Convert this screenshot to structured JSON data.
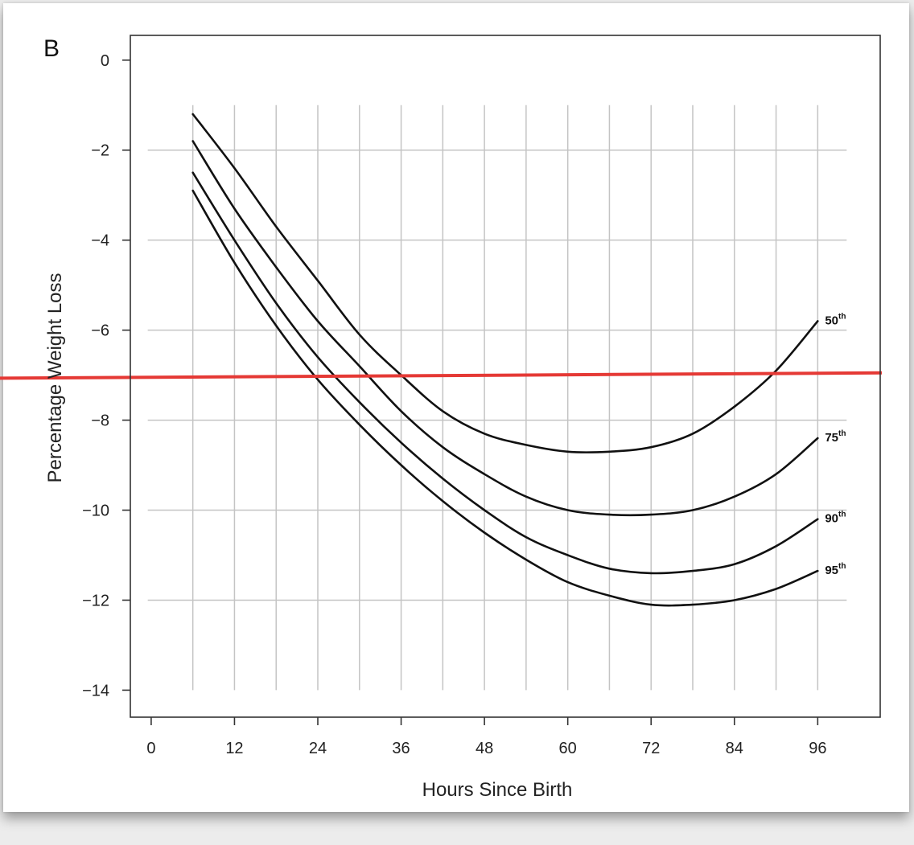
{
  "chart_data": {
    "type": "line",
    "panel_label": "B",
    "title": "",
    "xlabel": "Hours Since Birth",
    "ylabel": "Percentage Weight Loss",
    "xlim": [
      -3,
      105
    ],
    "ylim": [
      -14.6,
      0.55
    ],
    "xticks": [
      0,
      12,
      24,
      36,
      48,
      60,
      72,
      84,
      96
    ],
    "yticks": [
      0,
      -2,
      -4,
      -6,
      -8,
      -10,
      -12,
      -14
    ],
    "grid": {
      "horizontal": [
        -2,
        -4,
        -6,
        -8,
        -10,
        -12
      ],
      "vertical": [
        6,
        12,
        18,
        24,
        30,
        36,
        42,
        48,
        54,
        60,
        66,
        72,
        78,
        84,
        90,
        96
      ],
      "vertical_range": [
        -14,
        -1
      ]
    },
    "legend": "none",
    "series": [
      {
        "label_base": "50",
        "label_sup": "th",
        "color": "#111111",
        "x": [
          6,
          12,
          18,
          24,
          30,
          36,
          42,
          48,
          54,
          60,
          66,
          72,
          78,
          84,
          90,
          96
        ],
        "y": [
          -1.2,
          -2.4,
          -3.7,
          -4.9,
          -6.1,
          -7.0,
          -7.8,
          -8.3,
          -8.55,
          -8.7,
          -8.7,
          -8.6,
          -8.3,
          -7.7,
          -6.9,
          -5.8
        ]
      },
      {
        "label_base": "75",
        "label_sup": "th",
        "color": "#111111",
        "x": [
          6,
          12,
          18,
          24,
          30,
          36,
          42,
          48,
          54,
          60,
          66,
          72,
          78,
          84,
          90,
          96
        ],
        "y": [
          -1.8,
          -3.3,
          -4.6,
          -5.8,
          -6.8,
          -7.8,
          -8.6,
          -9.2,
          -9.7,
          -10.0,
          -10.1,
          -10.1,
          -10.0,
          -9.7,
          -9.2,
          -8.4
        ]
      },
      {
        "label_base": "90",
        "label_sup": "th",
        "color": "#111111",
        "x": [
          6,
          12,
          18,
          24,
          30,
          36,
          42,
          48,
          54,
          60,
          66,
          72,
          78,
          84,
          90,
          96
        ],
        "y": [
          -2.5,
          -4.0,
          -5.4,
          -6.6,
          -7.6,
          -8.5,
          -9.3,
          -10.0,
          -10.6,
          -11.0,
          -11.3,
          -11.4,
          -11.35,
          -11.2,
          -10.8,
          -10.2
        ]
      },
      {
        "label_base": "95",
        "label_sup": "th",
        "color": "#111111",
        "x": [
          6,
          12,
          18,
          24,
          30,
          36,
          42,
          48,
          54,
          60,
          66,
          72,
          78,
          84,
          90,
          96
        ],
        "y": [
          -2.9,
          -4.5,
          -5.9,
          -7.1,
          -8.1,
          -9.0,
          -9.8,
          -10.5,
          -11.1,
          -11.6,
          -11.9,
          -12.1,
          -12.1,
          -12.0,
          -11.75,
          -11.35
        ]
      }
    ],
    "reference_line": {
      "color": "#e53935",
      "x": [
        -3,
        105
      ],
      "y": [
        -7.05,
        -6.95
      ]
    }
  }
}
